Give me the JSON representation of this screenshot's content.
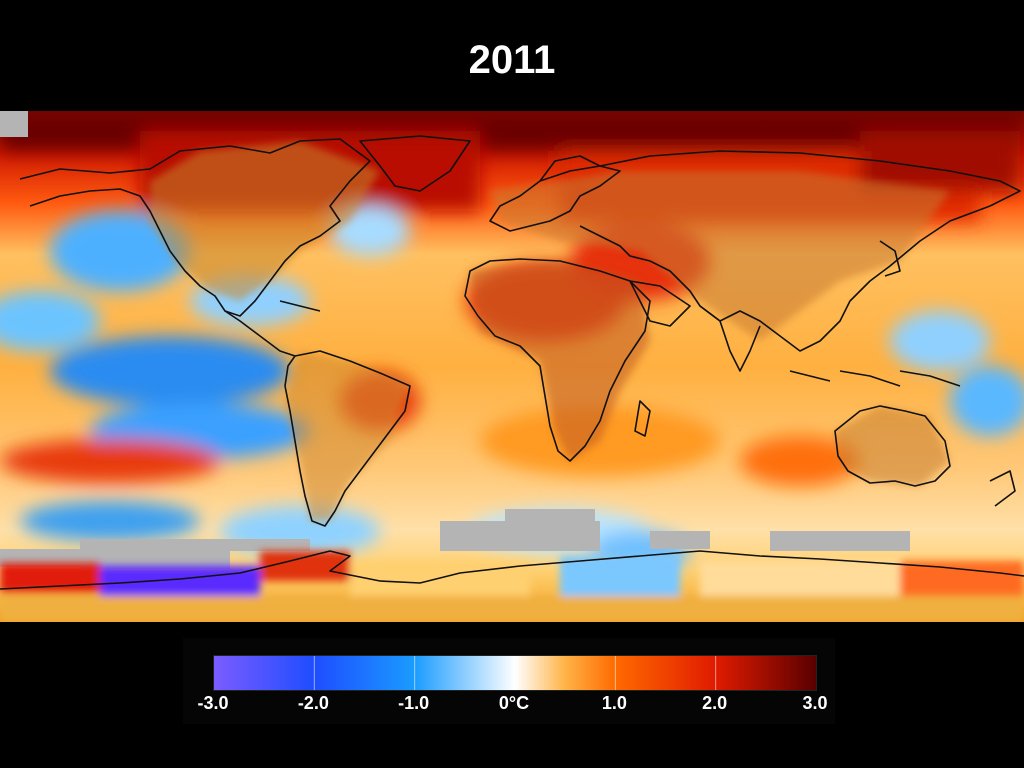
{
  "title": "2011",
  "legend": {
    "unit": "°C",
    "ticks": [
      {
        "value": -3.0,
        "label": "-3.0"
      },
      {
        "value": -2.0,
        "label": "-2.0"
      },
      {
        "value": -1.0,
        "label": "-1.0"
      },
      {
        "value": 0.0,
        "label": "0°C"
      },
      {
        "value": 1.0,
        "label": "1.0"
      },
      {
        "value": 2.0,
        "label": "2.0"
      },
      {
        "value": 3.0,
        "label": "3.0"
      }
    ],
    "range": [
      -3.0,
      3.0
    ],
    "colors": {
      "neg3": "#7b5cff",
      "neg2": "#1e4dff",
      "neg1": "#1a9cff",
      "zero": "#ffffff",
      "pos05": "#ffb347",
      "pos1": "#ff6a00",
      "pos2": "#e01b00",
      "pos3": "#5a0000"
    }
  },
  "map": {
    "projection": "equirectangular",
    "no_data_color": "#b0b0b0",
    "continents": [
      "North America",
      "South America",
      "Europe",
      "Africa",
      "Asia",
      "Australia",
      "Antarctica"
    ]
  }
}
